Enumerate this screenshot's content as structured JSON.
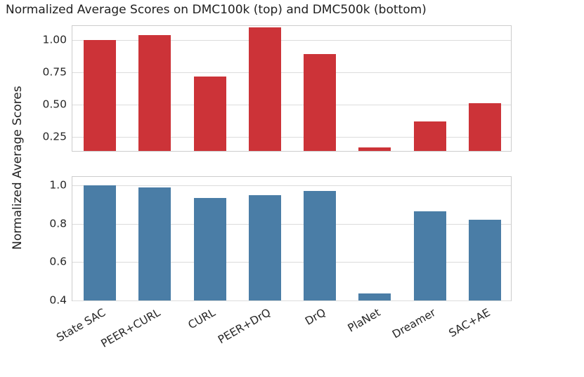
{
  "chart_data": {
    "type": "bar",
    "title": "Normalized Average Scores on DMC100k (top) and DMC500k (bottom)",
    "ylabel": "Normalized Average Scores",
    "xlabel": "",
    "grid": true,
    "legend": false,
    "categories": [
      "State SAC",
      "PEER+CURL",
      "CURL",
      "PEER+DrQ",
      "DrQ",
      "PlaNet",
      "Dreamer",
      "SAC+AE"
    ],
    "subplots": [
      {
        "name": "DMC100k",
        "position": "top",
        "bar_color": "#cc3338",
        "values": [
          1.0,
          1.04,
          0.72,
          1.1,
          0.89,
          0.17,
          0.37,
          0.51
        ],
        "ylim": [
          0.14,
          1.11
        ],
        "yticks": [
          {
            "value": 0.25,
            "label": "0.25"
          },
          {
            "value": 0.5,
            "label": "0.50"
          },
          {
            "value": 0.75,
            "label": "0.75"
          },
          {
            "value": 1.0,
            "label": "1.00"
          }
        ]
      },
      {
        "name": "DMC500k",
        "position": "bottom",
        "bar_color": "#4a7da6",
        "values": [
          1.0,
          0.99,
          0.935,
          0.95,
          0.97,
          0.435,
          0.865,
          0.82
        ],
        "ylim": [
          0.4,
          1.044
        ],
        "yticks": [
          {
            "value": 0.4,
            "label": "0.4"
          },
          {
            "value": 0.6,
            "label": "0.6"
          },
          {
            "value": 0.8,
            "label": "0.8"
          },
          {
            "value": 1.0,
            "label": "1.0"
          }
        ]
      }
    ],
    "colors": {
      "grid": "#dcdcdc",
      "spine": "#cccccc",
      "text": "#262626",
      "background": "#ffffff"
    }
  }
}
